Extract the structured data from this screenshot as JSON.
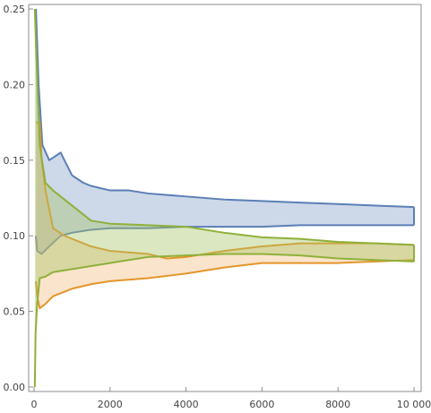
{
  "chart_data": {
    "type": "area",
    "xlim": [
      0,
      10000
    ],
    "ylim": [
      0,
      0.25
    ],
    "x_ticks": [
      {
        "value": 0,
        "label": "0"
      },
      {
        "value": 2000,
        "label": "2000"
      },
      {
        "value": 4000,
        "label": "4000"
      },
      {
        "value": 6000,
        "label": "6000"
      },
      {
        "value": 8000,
        "label": "8000"
      },
      {
        "value": 10000,
        "label": "10 000"
      }
    ],
    "y_ticks": [
      {
        "value": 0.0,
        "label": "0.00"
      },
      {
        "value": 0.05,
        "label": "0.05"
      },
      {
        "value": 0.1,
        "label": "0.10"
      },
      {
        "value": 0.15,
        "label": "0.15"
      },
      {
        "value": 0.2,
        "label": "0.20"
      },
      {
        "value": 0.25,
        "label": "0.25"
      }
    ],
    "grid": false,
    "legend": "none",
    "bands": [
      {
        "color": "#5b7fb5",
        "fill": "#5b7fb5",
        "fill_opacity": 0.3,
        "upper": [
          [
            50,
            0.25
          ],
          [
            120,
            0.2
          ],
          [
            220,
            0.16
          ],
          [
            400,
            0.15
          ],
          [
            700,
            0.155
          ],
          [
            1000,
            0.14
          ],
          [
            1300,
            0.135
          ],
          [
            1500,
            0.133
          ],
          [
            2000,
            0.13
          ],
          [
            2500,
            0.13
          ],
          [
            3000,
            0.128
          ],
          [
            3500,
            0.127
          ],
          [
            4000,
            0.126
          ],
          [
            5000,
            0.124
          ],
          [
            6000,
            0.123
          ],
          [
            7000,
            0.122
          ],
          [
            8000,
            0.121
          ],
          [
            9000,
            0.12
          ],
          [
            10000,
            0.119
          ]
        ],
        "lower": [
          [
            10000,
            0.107
          ],
          [
            9000,
            0.107
          ],
          [
            8000,
            0.107
          ],
          [
            7000,
            0.107
          ],
          [
            6000,
            0.106
          ],
          [
            5000,
            0.106
          ],
          [
            4000,
            0.106
          ],
          [
            3000,
            0.105
          ],
          [
            2000,
            0.105
          ],
          [
            1500,
            0.104
          ],
          [
            1000,
            0.102
          ],
          [
            700,
            0.1
          ],
          [
            400,
            0.093
          ],
          [
            200,
            0.088
          ],
          [
            80,
            0.09
          ],
          [
            50,
            0.1
          ]
        ]
      },
      {
        "color": "#e3962a",
        "fill": "#f0b26a",
        "fill_opacity": 0.35,
        "upper": [
          [
            50,
            0.175
          ],
          [
            150,
            0.175
          ],
          [
            200,
            0.15
          ],
          [
            300,
            0.13
          ],
          [
            500,
            0.105
          ],
          [
            800,
            0.1
          ],
          [
            1000,
            0.098
          ],
          [
            1500,
            0.093
          ],
          [
            2000,
            0.09
          ],
          [
            3000,
            0.088
          ],
          [
            3500,
            0.085
          ],
          [
            4000,
            0.086
          ],
          [
            5000,
            0.09
          ],
          [
            6000,
            0.093
          ],
          [
            7000,
            0.095
          ],
          [
            8000,
            0.095
          ],
          [
            9000,
            0.095
          ],
          [
            10000,
            0.094
          ]
        ],
        "lower": [
          [
            10000,
            0.084
          ],
          [
            9000,
            0.083
          ],
          [
            8000,
            0.082
          ],
          [
            7000,
            0.082
          ],
          [
            6000,
            0.082
          ],
          [
            5000,
            0.079
          ],
          [
            4000,
            0.075
          ],
          [
            3000,
            0.072
          ],
          [
            2000,
            0.07
          ],
          [
            1500,
            0.068
          ],
          [
            1000,
            0.065
          ],
          [
            500,
            0.06
          ],
          [
            300,
            0.055
          ],
          [
            150,
            0.052
          ],
          [
            80,
            0.06
          ],
          [
            50,
            0.07
          ]
        ]
      },
      {
        "color": "#8fb03a",
        "fill": "#a5c463",
        "fill_opacity": 0.4,
        "upper": [
          [
            20,
            0.25
          ],
          [
            60,
            0.22
          ],
          [
            150,
            0.16
          ],
          [
            300,
            0.135
          ],
          [
            500,
            0.13
          ],
          [
            800,
            0.124
          ],
          [
            1000,
            0.12
          ],
          [
            1500,
            0.11
          ],
          [
            2000,
            0.108
          ],
          [
            3000,
            0.107
          ],
          [
            4000,
            0.106
          ],
          [
            5000,
            0.102
          ],
          [
            6000,
            0.099
          ],
          [
            7000,
            0.098
          ],
          [
            8000,
            0.096
          ],
          [
            9000,
            0.095
          ],
          [
            10000,
            0.094
          ]
        ],
        "lower": [
          [
            10000,
            0.083
          ],
          [
            9000,
            0.084
          ],
          [
            8000,
            0.085
          ],
          [
            7000,
            0.087
          ],
          [
            6000,
            0.088
          ],
          [
            5000,
            0.088
          ],
          [
            4000,
            0.087
          ],
          [
            3000,
            0.086
          ],
          [
            2000,
            0.082
          ],
          [
            1500,
            0.08
          ],
          [
            1000,
            0.078
          ],
          [
            500,
            0.076
          ],
          [
            300,
            0.073
          ],
          [
            150,
            0.072
          ],
          [
            80,
            0.055
          ],
          [
            40,
            0.035
          ],
          [
            20,
            0.0
          ]
        ]
      }
    ]
  }
}
